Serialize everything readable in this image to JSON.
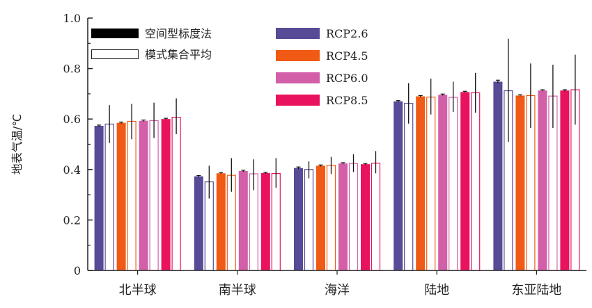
{
  "chart_data": {
    "type": "bar",
    "ylabel": "地表气温/℃",
    "xlabel": "",
    "ylim": [
      0,
      1.0
    ],
    "yticks": [
      "0",
      "0.2",
      "0.4",
      "0.6",
      "0.8",
      "1.0"
    ],
    "categories": [
      "北半球",
      "南半球",
      "海洋",
      "陆地",
      "东亚陆地"
    ],
    "style_legend": [
      {
        "label": "空间型标度法",
        "style": "filled"
      },
      {
        "label": "模式集合平均",
        "style": "hollow"
      }
    ],
    "series": [
      {
        "name": "RCP2.6",
        "color": "#574a96",
        "pattern_scaling": [
          0.573,
          0.373,
          0.406,
          0.67,
          0.748
        ],
        "pattern_scaling_err": [
          0.003,
          0.003,
          0.004,
          0.003,
          0.006
        ],
        "ensemble_mean": [
          0.58,
          0.351,
          0.4,
          0.662,
          0.712
        ],
        "ensemble_err": [
          [
            0.505,
            0.655
          ],
          [
            0.285,
            0.415
          ],
          [
            0.365,
            0.432
          ],
          [
            0.582,
            0.742
          ],
          [
            0.51,
            0.918
          ]
        ]
      },
      {
        "name": "RCP4.5",
        "color": "#f05a14",
        "pattern_scaling": [
          0.585,
          0.385,
          0.415,
          0.69,
          0.693
        ],
        "pattern_scaling_err": [
          0.003,
          0.003,
          0.003,
          0.003,
          0.003
        ],
        "ensemble_mean": [
          0.591,
          0.377,
          0.417,
          0.687,
          0.693
        ],
        "ensemble_err": [
          [
            0.52,
            0.66
          ],
          [
            0.312,
            0.445
          ],
          [
            0.382,
            0.45
          ],
          [
            0.618,
            0.76
          ],
          [
            0.565,
            0.82
          ]
        ]
      },
      {
        "name": "RCP6.0",
        "color": "#d25fa8",
        "pattern_scaling": [
          0.593,
          0.394,
          0.424,
          0.696,
          0.713
        ],
        "pattern_scaling_err": [
          0.003,
          0.003,
          0.003,
          0.003,
          0.003
        ],
        "ensemble_mean": [
          0.594,
          0.383,
          0.424,
          0.686,
          0.691
        ],
        "ensemble_err": [
          [
            0.525,
            0.665
          ],
          [
            0.318,
            0.44
          ],
          [
            0.39,
            0.46
          ],
          [
            0.628,
            0.748
          ],
          [
            0.565,
            0.815
          ]
        ]
      },
      {
        "name": "RCP8.5",
        "color": "#e8125e",
        "pattern_scaling": [
          0.6,
          0.386,
          0.421,
          0.707,
          0.713
        ],
        "pattern_scaling_err": [
          0.003,
          0.003,
          0.003,
          0.003,
          0.003
        ],
        "ensemble_mean": [
          0.607,
          0.384,
          0.425,
          0.704,
          0.716
        ],
        "ensemble_err": [
          [
            0.54,
            0.682
          ],
          [
            0.328,
            0.445
          ],
          [
            0.385,
            0.473
          ],
          [
            0.625,
            0.783
          ],
          [
            0.578,
            0.855
          ]
        ]
      }
    ]
  }
}
